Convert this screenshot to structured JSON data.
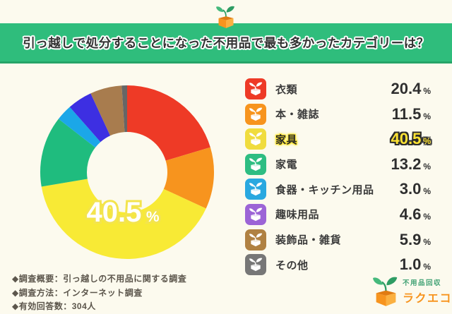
{
  "header": {
    "title": "引っ越しで処分することになった不用品で最も多かったカテゴリーは？",
    "bg_color": "#2fbd7c"
  },
  "chart_data": {
    "type": "pie",
    "subtype": "donut",
    "title": "引っ越しで処分することになった不用品で最も多かったカテゴリーは？",
    "categories": [
      "衣類",
      "本・雑誌",
      "家具",
      "家電",
      "食器・キッチン用品",
      "趣味用品",
      "装飾品・雑貨",
      "その他"
    ],
    "values": [
      20.4,
      11.5,
      40.5,
      13.2,
      3.0,
      4.6,
      5.9,
      1.0
    ],
    "colors": [
      "#ee3a26",
      "#f7941e",
      "#f8ea35",
      "#1fbc7e",
      "#1ba7e8",
      "#3d2fe2",
      "#a87c4e",
      "#666666"
    ],
    "start_angle_deg": 0,
    "clockwise": true,
    "inner_radius_ratio": 0.46,
    "legend_position": "right",
    "center_label": {
      "value": "40.5",
      "unit": "%"
    }
  },
  "legend": {
    "items": [
      {
        "label": "衣類",
        "value": "20.4",
        "unit": "%",
        "icon_color": "#ee3a26",
        "highlight": false
      },
      {
        "label": "本・雑誌",
        "value": "11.5",
        "unit": "%",
        "icon_color": "#f7941e",
        "highlight": false
      },
      {
        "label": "家具",
        "value": "40.5",
        "unit": "%",
        "icon_color": "#f0dc3e",
        "highlight": true
      },
      {
        "label": "家電",
        "value": "13.2",
        "unit": "%",
        "icon_color": "#2ebd82",
        "highlight": false
      },
      {
        "label": "食器・キッチン用品",
        "value": "3.0",
        "unit": "%",
        "icon_color": "#29a8e0",
        "highlight": false
      },
      {
        "label": "趣味用品",
        "value": "4.6",
        "unit": "%",
        "icon_color": "#9c64d6",
        "highlight": false
      },
      {
        "label": "装飾品・雑貨",
        "value": "5.9",
        "unit": "%",
        "icon_color": "#b08142",
        "highlight": false
      },
      {
        "label": "その他",
        "value": "1.0",
        "unit": "%",
        "icon_color": "#777777",
        "highlight": false
      }
    ]
  },
  "footer": {
    "lines": [
      "◆調査概要：引っ越しの不用品に関する調査",
      "◆調査方法：インターネット調査",
      "◆有効回答数：304人"
    ]
  },
  "brand": {
    "logo_tagline": "不用品回収",
    "logo_name": "ラクエコ",
    "tagline_color": "#3fa173",
    "name_color": "#f7941e"
  }
}
